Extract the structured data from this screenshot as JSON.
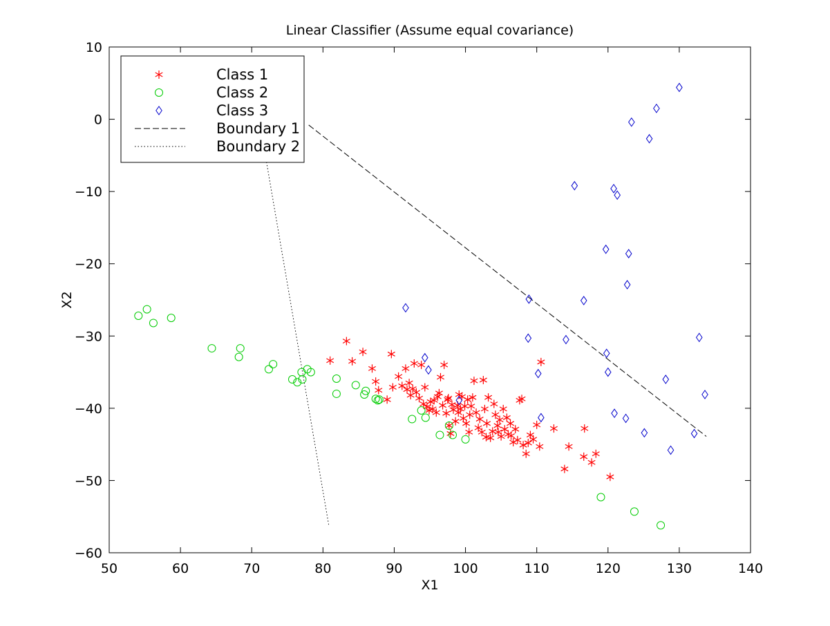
{
  "chart_data": {
    "type": "scatter",
    "title": "Linear Classifier (Assume equal covariance)",
    "xlabel": "X1",
    "ylabel": "X2",
    "xlim": [
      50,
      140
    ],
    "ylim": [
      -60,
      10
    ],
    "xticks": [
      50,
      60,
      70,
      80,
      90,
      100,
      110,
      120,
      130,
      140
    ],
    "yticks": [
      10,
      0,
      -10,
      -20,
      -30,
      -40,
      -50,
      -60
    ],
    "grid": false,
    "legend_position": "top-left",
    "series": [
      {
        "name": "Class 1",
        "marker": "asterisk",
        "color": "#ff0000",
        "points": [
          [
            81,
            -33.4
          ],
          [
            83.3,
            -30.7
          ],
          [
            84.1,
            -33.5
          ],
          [
            85.6,
            -32.2
          ],
          [
            86.9,
            -34.5
          ],
          [
            87.4,
            -36.3
          ],
          [
            87.8,
            -37.5
          ],
          [
            89,
            -38.8
          ],
          [
            89.6,
            -32.5
          ],
          [
            89.8,
            -37.1
          ],
          [
            90.6,
            -35.6
          ],
          [
            91.1,
            -36.9
          ],
          [
            91.6,
            -34.5
          ],
          [
            91.8,
            -37.4
          ],
          [
            92.1,
            -36.5
          ],
          [
            92.3,
            -38.2
          ],
          [
            92.6,
            -37.3
          ],
          [
            92.8,
            -33.8
          ],
          [
            93.1,
            -37.8
          ],
          [
            93.5,
            -38.6
          ],
          [
            93.8,
            -34
          ],
          [
            94.1,
            -39.4
          ],
          [
            94.3,
            -37.1
          ],
          [
            94.6,
            -39.8
          ],
          [
            94.9,
            -40.3
          ],
          [
            95.1,
            -39.1
          ],
          [
            95.4,
            -40.1
          ],
          [
            95.6,
            -38.9
          ],
          [
            95.9,
            -40.6
          ],
          [
            96.1,
            -38.4
          ],
          [
            96.3,
            -37.9
          ],
          [
            96.5,
            -35.7
          ],
          [
            96.8,
            -39.6
          ],
          [
            97,
            -34
          ],
          [
            97.3,
            -40.7
          ],
          [
            97.5,
            -38.8
          ],
          [
            97.7,
            -42.4
          ],
          [
            97.9,
            -43.5
          ],
          [
            98.1,
            -39.5
          ],
          [
            98.3,
            -40.2
          ],
          [
            98.6,
            -41.8
          ],
          [
            98.9,
            -39.6
          ],
          [
            99.1,
            -38.1
          ],
          [
            99.3,
            -40.1
          ],
          [
            99.5,
            -38.4
          ],
          [
            99.7,
            -41.4
          ],
          [
            99.9,
            -39.7
          ],
          [
            100.1,
            -42.1
          ],
          [
            100.3,
            -38.8
          ],
          [
            100.5,
            -43.3
          ],
          [
            100.8,
            -39.7
          ],
          [
            101,
            -38.5
          ],
          [
            101.2,
            -36.2
          ],
          [
            101.5,
            -40.6
          ],
          [
            101.8,
            -42.7
          ],
          [
            102,
            -41.5
          ],
          [
            102.3,
            -43.3
          ],
          [
            102.5,
            -36.1
          ],
          [
            102.7,
            -40.1
          ],
          [
            103,
            -42.1
          ],
          [
            103.2,
            -38.5
          ],
          [
            103.5,
            -44.1
          ],
          [
            103.8,
            -43.2
          ],
          [
            104,
            -39.4
          ],
          [
            104.2,
            -40.9
          ],
          [
            104.5,
            -42.4
          ],
          [
            104.8,
            -41.6
          ],
          [
            105,
            -43.9
          ],
          [
            105.3,
            -40.1
          ],
          [
            105.5,
            -42.9
          ],
          [
            105.8,
            -41.3
          ],
          [
            106,
            -43.6
          ],
          [
            106.3,
            -42.1
          ],
          [
            106.7,
            -44.7
          ],
          [
            107,
            -42.9
          ],
          [
            107.3,
            -44.4
          ],
          [
            107.6,
            -38.9
          ],
          [
            107.9,
            -38.7
          ],
          [
            108.1,
            -45.1
          ],
          [
            108.5,
            -46.3
          ],
          [
            108.8,
            -44.8
          ],
          [
            109.1,
            -43.7
          ],
          [
            109.5,
            -44.3
          ],
          [
            110,
            -42.3
          ],
          [
            110.4,
            -45.3
          ],
          [
            110.6,
            -33.6
          ],
          [
            112.4,
            -42.8
          ],
          [
            113.9,
            -48.4
          ],
          [
            114.5,
            -45.3
          ],
          [
            116.6,
            -46.7
          ],
          [
            116.7,
            -42.8
          ],
          [
            117.7,
            -47.5
          ],
          [
            118.3,
            -46.3
          ],
          [
            120.3,
            -49.5
          ],
          [
            97.6,
            -38.6
          ],
          [
            99,
            -40.6
          ],
          [
            100.6,
            -40.9
          ],
          [
            102.9,
            -44
          ],
          [
            104.6,
            -43.3
          ],
          [
            106.4,
            -43.8
          ]
        ]
      },
      {
        "name": "Class 2",
        "marker": "circle",
        "color": "#00cc00",
        "points": [
          [
            54.1,
            -27.2
          ],
          [
            55.3,
            -26.3
          ],
          [
            56.2,
            -28.2
          ],
          [
            58.7,
            -27.5
          ],
          [
            64.4,
            -31.7
          ],
          [
            68.2,
            -32.9
          ],
          [
            68.4,
            -31.7
          ],
          [
            72.4,
            -34.6
          ],
          [
            73,
            -33.9
          ],
          [
            75.7,
            -36
          ],
          [
            76.4,
            -36.4
          ],
          [
            77,
            -35
          ],
          [
            77.1,
            -36
          ],
          [
            77.8,
            -34.6
          ],
          [
            78.3,
            -35
          ],
          [
            81.9,
            -35.9
          ],
          [
            81.9,
            -38
          ],
          [
            84.6,
            -36.8
          ],
          [
            85.8,
            -38.1
          ],
          [
            86,
            -37.6
          ],
          [
            87.4,
            -38.7
          ],
          [
            87.7,
            -38.9
          ],
          [
            87.9,
            -38.8
          ],
          [
            92.5,
            -41.5
          ],
          [
            93.8,
            -40.3
          ],
          [
            94.4,
            -41.3
          ],
          [
            96.4,
            -43.7
          ],
          [
            97.7,
            -42.4
          ],
          [
            98.2,
            -43.7
          ],
          [
            100,
            -44.3
          ],
          [
            119,
            -52.3
          ],
          [
            123.7,
            -54.3
          ],
          [
            127.4,
            -56.2
          ]
        ]
      },
      {
        "name": "Class 3",
        "marker": "diamond",
        "color": "#0000cc",
        "points": [
          [
            91.6,
            -26.1
          ],
          [
            94.3,
            -33
          ],
          [
            94.8,
            -34.7
          ],
          [
            99.1,
            -38.9
          ],
          [
            108.9,
            -24.9
          ],
          [
            108.8,
            -30.3
          ],
          [
            110.2,
            -35.2
          ],
          [
            110.6,
            -41.3
          ],
          [
            114.1,
            -30.5
          ],
          [
            115.3,
            -9.2
          ],
          [
            116.6,
            -25.1
          ],
          [
            119.7,
            -18
          ],
          [
            119.8,
            -32.4
          ],
          [
            120,
            -35
          ],
          [
            120.8,
            -9.6
          ],
          [
            121.3,
            -10.5
          ],
          [
            120.9,
            -40.7
          ],
          [
            122.7,
            -22.9
          ],
          [
            122.5,
            -41.4
          ],
          [
            122.9,
            -18.6
          ],
          [
            123.3,
            -0.4
          ],
          [
            125.1,
            -43.4
          ],
          [
            125.8,
            -2.7
          ],
          [
            126.8,
            1.5
          ],
          [
            128.1,
            -36
          ],
          [
            128.8,
            -45.8
          ],
          [
            130,
            4.4
          ],
          [
            132.1,
            -43.5
          ],
          [
            132.8,
            -30.2
          ],
          [
            133.6,
            -38.1
          ]
        ]
      },
      {
        "name": "Boundary 1",
        "line_style": "dashed",
        "color": "#000000",
        "points": [
          [
            78,
            -0.8
          ],
          [
            133.8,
            -43.9
          ]
        ]
      },
      {
        "name": "Boundary 2",
        "line_style": "dotted",
        "color": "#000000",
        "points": [
          [
            72,
            -5.5
          ],
          [
            80.8,
            -56.1
          ]
        ]
      }
    ]
  }
}
